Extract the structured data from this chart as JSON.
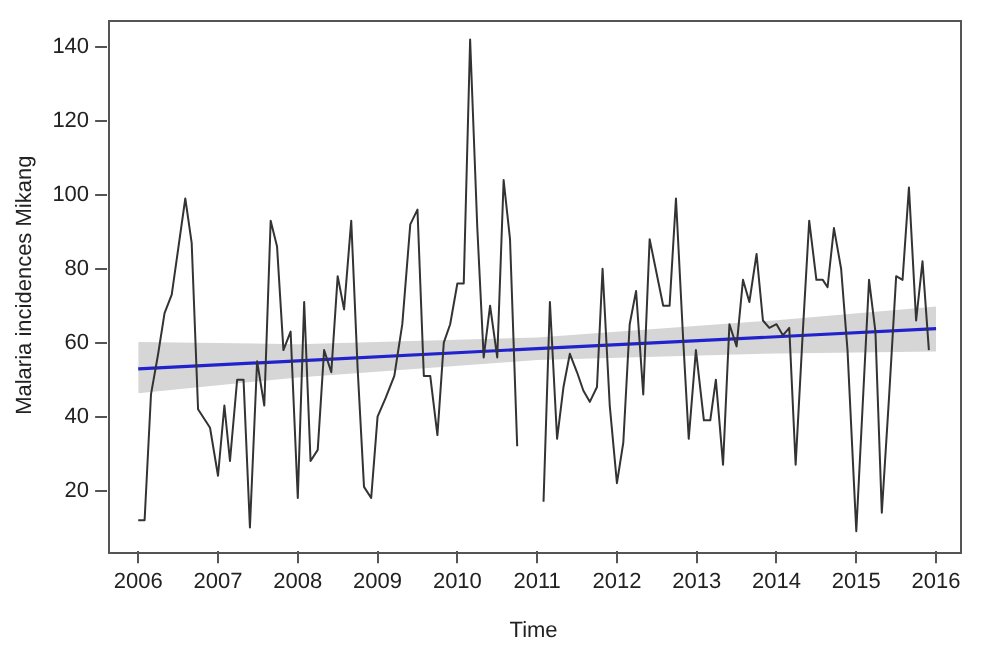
{
  "chart_data": {
    "type": "line",
    "xlabel": "Time",
    "ylabel": "Malaria incidences Mikang",
    "xlim": [
      2005.61,
      2016.3
    ],
    "xticks": [
      2006,
      2007,
      2008,
      2009,
      2010,
      2011,
      2012,
      2013,
      2014,
      2015,
      2016
    ],
    "ylim": [
      3.6,
      147.5
    ],
    "yticks": [
      20,
      40,
      60,
      80,
      100,
      120,
      140
    ],
    "grid": false,
    "legend": false,
    "marker": "none",
    "line_style": "solid",
    "series": [
      {
        "type": "line",
        "color": "#333333",
        "x": [
          2006.0,
          2006.08,
          2006.16,
          2006.25,
          2006.33,
          2006.42,
          2006.59,
          2006.67,
          2006.75,
          2006.9,
          2007.0,
          2007.08,
          2007.15,
          2007.24,
          2007.32,
          2007.4,
          2007.49,
          2007.58,
          2007.66,
          2007.74,
          2007.82,
          2007.91,
          2008.0,
          2008.08,
          2008.16,
          2008.25,
          2008.33,
          2008.42,
          2008.5,
          2008.58,
          2008.67,
          2008.75,
          2008.83,
          2008.92,
          2009.0,
          2009.1,
          2009.21,
          2009.31,
          2009.41,
          2009.5,
          2009.58,
          2009.66,
          2009.75,
          2009.83,
          2009.91,
          2010.0,
          2010.08,
          2010.16,
          2010.25,
          2010.33,
          2010.41,
          2010.5,
          2010.58,
          2010.66,
          2010.75,
          2010.91,
          2011.08,
          2011.16,
          2011.25,
          2011.33,
          2011.41,
          2011.5,
          2011.58,
          2011.66,
          2011.75,
          2011.82,
          2011.91,
          2012.0,
          2012.08,
          2012.16,
          2012.24,
          2012.33,
          2012.41,
          2012.58,
          2012.66,
          2012.74,
          2012.83,
          2012.9,
          2012.99,
          2013.09,
          2013.17,
          2013.24,
          2013.33,
          2013.41,
          2013.5,
          2013.58,
          2013.66,
          2013.75,
          2013.83,
          2013.91,
          2014.0,
          2014.08,
          2014.16,
          2014.24,
          2014.33,
          2014.41,
          2014.5,
          2014.58,
          2014.64,
          2014.72,
          2014.81,
          2014.89,
          2015.0,
          2015.08,
          2015.16,
          2015.24,
          2015.32,
          2015.41,
          2015.5,
          2015.58,
          2015.66,
          2015.75,
          2015.83,
          2015.91
        ],
        "values": [
          12,
          12,
          46,
          57,
          68,
          73,
          99,
          87,
          42,
          37,
          24,
          43,
          28,
          50,
          50,
          10,
          55,
          43,
          93,
          86,
          58,
          63,
          18,
          71,
          28,
          31,
          58,
          52,
          78,
          69,
          93,
          53,
          21,
          18,
          40,
          45,
          51,
          65,
          92,
          96,
          51,
          51,
          35,
          60,
          65,
          76,
          76,
          142,
          91,
          56,
          70,
          56,
          104,
          88,
          32,
          null,
          17,
          71,
          34,
          48,
          57,
          52,
          47,
          44,
          48,
          80,
          43,
          22,
          33,
          65,
          74,
          46,
          88,
          70,
          70,
          99,
          61,
          34,
          58,
          39,
          39,
          50,
          27,
          65,
          59,
          77,
          71,
          84,
          66,
          64,
          65,
          62,
          64,
          27,
          63,
          93,
          77,
          77,
          75,
          91,
          80,
          58,
          9,
          43,
          77,
          63,
          14,
          45,
          78,
          77,
          102,
          66,
          82,
          58
        ]
      },
      {
        "type": "line",
        "color": "#2222cc",
        "x": [
          2006,
          2008,
          2011,
          2014,
          2016
        ],
        "values": [
          52.9,
          55.1,
          58.4,
          61.6,
          63.8
        ],
        "lower": [
          46.3,
          50.6,
          55.3,
          57.1,
          57.6
        ],
        "upper": [
          60.2,
          59.6,
          61.4,
          66.1,
          69.8
        ]
      }
    ]
  }
}
